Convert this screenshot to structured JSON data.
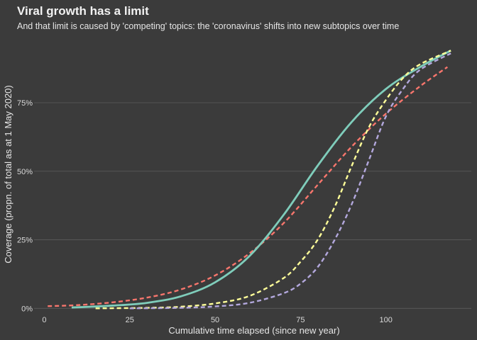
{
  "chart_data": {
    "type": "line",
    "title": "Viral growth has a limit",
    "subtitle": "And that limit is caused by 'competing' topics: the 'coronavirus' shifts into new subtopics over time",
    "xlabel": "Cumulative time elapsed (since new year)",
    "ylabel": "Coverage (propn. of total as at 1 May 2020)",
    "xlim": [
      -3,
      125
    ],
    "ylim": [
      -0.025,
      0.985
    ],
    "x_ticks": [
      0,
      25,
      50,
      75,
      100
    ],
    "x_tick_labels": [
      "0",
      "25",
      "50",
      "75",
      "100"
    ],
    "y_ticks": [
      0,
      0.25,
      0.5,
      0.75
    ],
    "y_tick_labels": [
      "0%",
      "25%",
      "50%",
      "75%"
    ],
    "grid": "horizontal",
    "legend": "none",
    "series": [
      {
        "color": "#f8766d",
        "dash": "dashed",
        "x": [
          1,
          10,
          20,
          30,
          40,
          50,
          60,
          70,
          80,
          90,
          100,
          110,
          118
        ],
        "y": [
          0.008,
          0.012,
          0.022,
          0.039,
          0.069,
          0.12,
          0.2,
          0.31,
          0.45,
          0.59,
          0.71,
          0.81,
          0.88
        ]
      },
      {
        "color": "#7fcdbb",
        "dash": "solid",
        "x": [
          8,
          20,
          30,
          40,
          50,
          60,
          70,
          80,
          90,
          100,
          110,
          119
        ],
        "y": [
          0.003,
          0.01,
          0.02,
          0.044,
          0.095,
          0.19,
          0.34,
          0.52,
          0.68,
          0.8,
          0.88,
          0.94
        ]
      },
      {
        "color": "#ffff99",
        "dash": "dashed",
        "x": [
          15,
          30,
          40,
          50,
          60,
          70,
          75,
          80,
          85,
          90,
          95,
          100,
          105,
          110,
          119
        ],
        "y": [
          0.0,
          0.002,
          0.006,
          0.018,
          0.045,
          0.11,
          0.17,
          0.25,
          0.37,
          0.52,
          0.66,
          0.76,
          0.84,
          0.89,
          0.94
        ]
      },
      {
        "color": "#b3a8dd",
        "dash": "dashed",
        "x": [
          25,
          40,
          50,
          60,
          70,
          75,
          80,
          85,
          90,
          95,
          100,
          105,
          110,
          119
        ],
        "y": [
          0.0,
          0.002,
          0.007,
          0.02,
          0.055,
          0.09,
          0.15,
          0.25,
          0.38,
          0.54,
          0.7,
          0.8,
          0.87,
          0.93
        ]
      }
    ]
  }
}
